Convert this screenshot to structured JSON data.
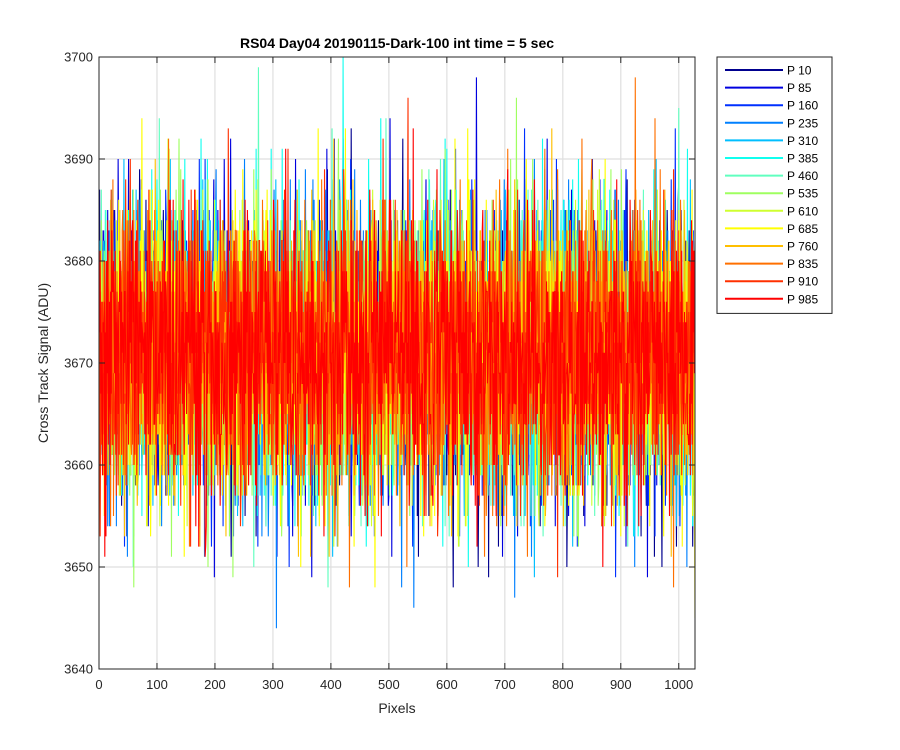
{
  "chart_data": {
    "type": "line",
    "title": "RS04 Day04 20190115-Dark-100 int time = 5 sec",
    "xlabel": "Pixels",
    "ylabel": "Cross Track Signal (ADU)",
    "xlim": [
      0,
      1028
    ],
    "ylim": [
      3640,
      3700
    ],
    "xticks": [
      0,
      100,
      200,
      300,
      400,
      500,
      600,
      700,
      800,
      900,
      1000
    ],
    "yticks": [
      3640,
      3650,
      3660,
      3670,
      3680,
      3690,
      3700
    ],
    "grid": true,
    "legend_position": "outside-top-right",
    "n_points": 1028,
    "noise_model": {
      "mean": 3671,
      "std": 7.2,
      "note": "Each series is per-pixel dark noise around ~3671 ADU, spanning roughly 3643-3700"
    },
    "series": [
      {
        "name": "P 10",
        "color": "#00008f",
        "seed": 10
      },
      {
        "name": "P 85",
        "color": "#0000df",
        "seed": 85
      },
      {
        "name": "P 160",
        "color": "#0030ff",
        "seed": 160
      },
      {
        "name": "P 235",
        "color": "#0080ff",
        "seed": 235
      },
      {
        "name": "P 310",
        "color": "#00bfff",
        "seed": 310
      },
      {
        "name": "P 385",
        "color": "#10ffef",
        "seed": 385
      },
      {
        "name": "P 460",
        "color": "#60ffbf",
        "seed": 460
      },
      {
        "name": "P 535",
        "color": "#9fff60",
        "seed": 535
      },
      {
        "name": "P 610",
        "color": "#cfff30",
        "seed": 610
      },
      {
        "name": "P 685",
        "color": "#ffff00",
        "seed": 685
      },
      {
        "name": "P 760",
        "color": "#ffbf00",
        "seed": 760
      },
      {
        "name": "P 835",
        "color": "#ff7000",
        "seed": 835
      },
      {
        "name": "P 910",
        "color": "#ff3000",
        "seed": 910
      },
      {
        "name": "P 985",
        "color": "#ff0000",
        "seed": 985
      }
    ]
  }
}
